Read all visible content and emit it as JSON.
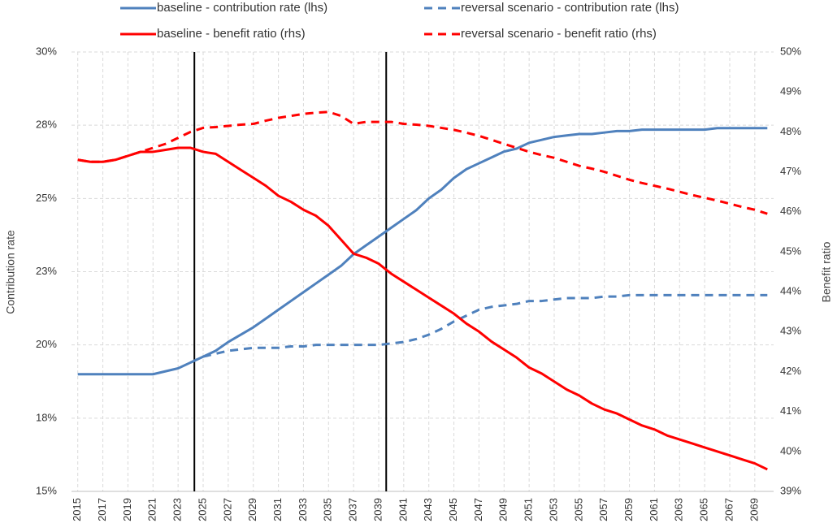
{
  "chart_data": {
    "type": "line",
    "x": [
      2015,
      2016,
      2017,
      2018,
      2019,
      2020,
      2021,
      2022,
      2023,
      2024,
      2025,
      2026,
      2027,
      2028,
      2029,
      2030,
      2031,
      2032,
      2033,
      2034,
      2035,
      2036,
      2037,
      2038,
      2039,
      2040,
      2041,
      2042,
      2043,
      2044,
      2045,
      2046,
      2047,
      2048,
      2049,
      2050,
      2051,
      2052,
      2053,
      2054,
      2055,
      2056,
      2057,
      2058,
      2059,
      2060,
      2061,
      2062,
      2063,
      2064,
      2065,
      2066,
      2067,
      2068,
      2069,
      2070
    ],
    "xlim": [
      2014.5,
      2070.5
    ],
    "xticks": [
      2015,
      2017,
      2019,
      2021,
      2023,
      2025,
      2027,
      2029,
      2031,
      2033,
      2035,
      2037,
      2039,
      2041,
      2043,
      2045,
      2047,
      2049,
      2051,
      2053,
      2055,
      2057,
      2059,
      2061,
      2063,
      2065,
      2067,
      2069
    ],
    "ylabel": "Contribution rate",
    "y2label": "Benefit ratio",
    "ylim": [
      15,
      30
    ],
    "yticks": [
      {
        "value": 15,
        "label": "15%"
      },
      {
        "value": 17.5,
        "label": "18%"
      },
      {
        "value": 20,
        "label": "20%"
      },
      {
        "value": 22.5,
        "label": "23%"
      },
      {
        "value": 25,
        "label": "25%"
      },
      {
        "value": 27.5,
        "label": "28%"
      },
      {
        "value": 30,
        "label": "30%"
      }
    ],
    "y2lim": [
      39,
      50
    ],
    "y2ticks": [
      {
        "value": 39,
        "label": "39%"
      },
      {
        "value": 40,
        "label": "40%"
      },
      {
        "value": 41,
        "label": "41%"
      },
      {
        "value": 42,
        "label": "42%"
      },
      {
        "value": 43,
        "label": "43%"
      },
      {
        "value": 44,
        "label": "44%"
      },
      {
        "value": 45,
        "label": "45%"
      },
      {
        "value": 46,
        "label": "46%"
      },
      {
        "value": 47,
        "label": "47%"
      },
      {
        "value": 48,
        "label": "48%"
      },
      {
        "value": 49,
        "label": "49%"
      },
      {
        "value": 50,
        "label": "50%"
      }
    ],
    "grid": true,
    "legend": "top",
    "vlines": [
      2024.3,
      2039.6
    ],
    "series": [
      {
        "name": "baseline - contribution rate (lhs)",
        "color": "#4f81bd",
        "dashed": false,
        "axis": "y",
        "values": [
          19.0,
          19.0,
          19.0,
          19.0,
          19.0,
          19.0,
          19.0,
          19.1,
          19.2,
          19.4,
          19.6,
          19.8,
          20.1,
          20.35,
          20.6,
          20.9,
          21.2,
          21.5,
          21.8,
          22.1,
          22.4,
          22.7,
          23.1,
          23.4,
          23.7,
          24.0,
          24.3,
          24.6,
          25.0,
          25.3,
          25.7,
          26.0,
          26.2,
          26.4,
          26.6,
          26.7,
          26.9,
          27.0,
          27.1,
          27.15,
          27.2,
          27.2,
          27.25,
          27.3,
          27.3,
          27.35,
          27.35,
          27.35,
          27.35,
          27.35,
          27.35,
          27.4,
          27.4,
          27.4,
          27.4,
          27.4
        ]
      },
      {
        "name": "reversal scenario - contribution rate (lhs)",
        "color": "#4f81bd",
        "dashed": true,
        "axis": "y",
        "values": [
          null,
          null,
          null,
          null,
          null,
          null,
          null,
          null,
          null,
          19.4,
          19.6,
          19.7,
          19.8,
          19.85,
          19.9,
          19.9,
          19.9,
          19.95,
          19.95,
          20.0,
          20.0,
          20.0,
          20.0,
          20.0,
          20.0,
          20.05,
          20.1,
          20.2,
          20.35,
          20.55,
          20.8,
          21.0,
          21.2,
          21.3,
          21.35,
          21.4,
          21.5,
          21.5,
          21.55,
          21.6,
          21.6,
          21.6,
          21.65,
          21.65,
          21.7,
          21.7,
          21.7,
          21.7,
          21.7,
          21.7,
          21.7,
          21.7,
          21.7,
          21.7,
          21.7,
          21.7
        ]
      },
      {
        "name": "baseline - benefit ratio (rhs)",
        "color": "#ff0000",
        "dashed": false,
        "axis": "y2",
        "values": [
          47.3,
          47.25,
          47.25,
          47.3,
          47.4,
          47.5,
          47.5,
          47.55,
          47.6,
          47.6,
          47.5,
          47.45,
          47.25,
          47.05,
          46.85,
          46.65,
          46.4,
          46.25,
          46.05,
          45.9,
          45.65,
          45.3,
          44.95,
          44.85,
          44.7,
          44.45,
          44.25,
          44.05,
          43.85,
          43.65,
          43.45,
          43.2,
          43.0,
          42.75,
          42.55,
          42.35,
          42.1,
          41.95,
          41.75,
          41.55,
          41.4,
          41.2,
          41.05,
          40.95,
          40.8,
          40.65,
          40.55,
          40.4,
          40.3,
          40.2,
          40.1,
          40.0,
          39.9,
          39.8,
          39.7,
          39.55
        ]
      },
      {
        "name": "reversal scenario - benefit ratio (rhs)",
        "color": "#ff0000",
        "dashed": true,
        "axis": "y2",
        "values": [
          47.3,
          47.25,
          47.25,
          47.3,
          47.4,
          47.5,
          47.6,
          47.7,
          47.85,
          48.0,
          48.1,
          48.12,
          48.15,
          48.18,
          48.2,
          48.28,
          48.35,
          48.4,
          48.45,
          48.48,
          48.5,
          48.4,
          48.2,
          48.25,
          48.25,
          48.25,
          48.2,
          48.18,
          48.15,
          48.1,
          48.05,
          47.98,
          47.9,
          47.8,
          47.7,
          47.6,
          47.5,
          47.42,
          47.35,
          47.25,
          47.15,
          47.08,
          47.0,
          46.9,
          46.8,
          46.72,
          46.65,
          46.58,
          46.5,
          46.42,
          46.35,
          46.28,
          46.2,
          46.12,
          46.05,
          45.95
        ]
      }
    ]
  }
}
